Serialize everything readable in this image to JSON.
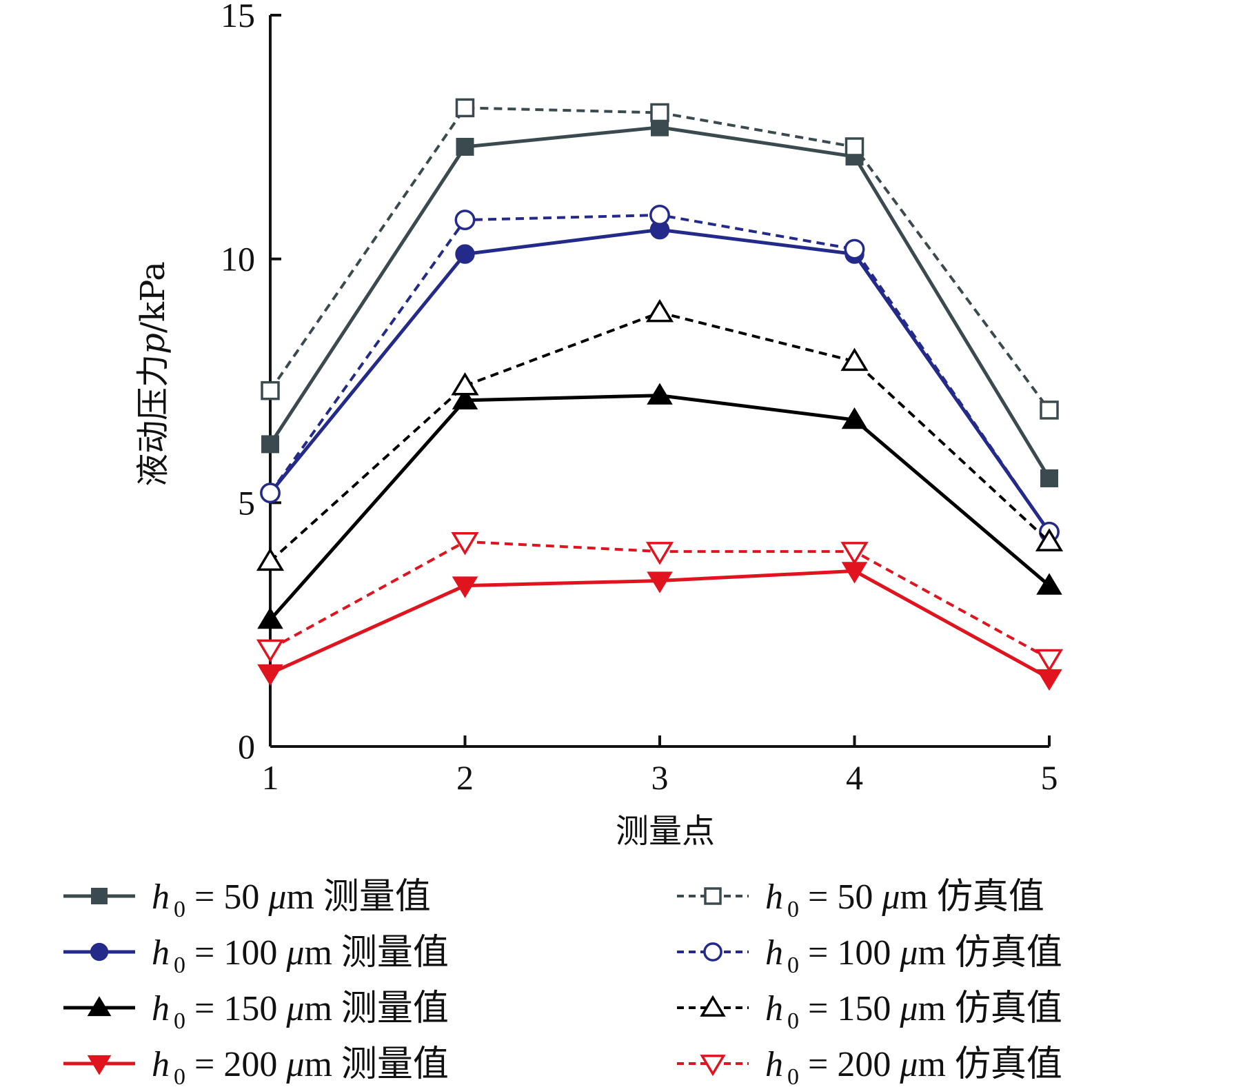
{
  "chart_data": {
    "type": "line",
    "xlabel": "测量点",
    "ylabel_prefix": "液动压力",
    "ylabel_var": "p",
    "ylabel_unit": "/kPa",
    "x": [
      1,
      2,
      3,
      4,
      5
    ],
    "xlim": [
      1,
      5
    ],
    "ylim": [
      0,
      15
    ],
    "xticks": [
      "1",
      "2",
      "3",
      "4",
      "5"
    ],
    "yticks": [
      "0",
      "5",
      "10",
      "15"
    ],
    "grid": false,
    "legend_position": "bottom",
    "series": [
      {
        "name": "h0 = 50 μm 测量值",
        "h": "50",
        "kind": "测量值",
        "color": "#3a4a4e",
        "marker": "square",
        "filled": true,
        "dashed": false,
        "values": [
          6.2,
          12.3,
          12.7,
          12.1,
          5.5
        ]
      },
      {
        "name": "h0 = 100 μm 测量值",
        "h": "100",
        "kind": "测量值",
        "color": "#232a8a",
        "marker": "circle",
        "filled": true,
        "dashed": false,
        "values": [
          5.2,
          10.1,
          10.6,
          10.1,
          4.4
        ]
      },
      {
        "name": "h0 = 150 μm 测量值",
        "h": "150",
        "kind": "测量值",
        "color": "#000000",
        "marker": "triangle-up",
        "filled": true,
        "dashed": false,
        "values": [
          2.6,
          7.1,
          7.2,
          6.7,
          3.3
        ]
      },
      {
        "name": "h0 = 200 μm 测量值",
        "h": "200",
        "kind": "测量值",
        "color": "#e0141e",
        "marker": "triangle-down",
        "filled": true,
        "dashed": false,
        "values": [
          1.5,
          3.3,
          3.4,
          3.6,
          1.4
        ]
      },
      {
        "name": "h0 = 50 μm 仿真值",
        "h": "50",
        "kind": "仿真值",
        "color": "#3a4a4e",
        "marker": "square",
        "filled": false,
        "dashed": true,
        "values": [
          7.3,
          13.1,
          13.0,
          12.3,
          6.9
        ]
      },
      {
        "name": "h0 = 100 μm 仿真值",
        "h": "100",
        "kind": "仿真值",
        "color": "#232a8a",
        "marker": "circle",
        "filled": false,
        "dashed": true,
        "values": [
          5.2,
          10.8,
          10.9,
          10.2,
          4.4
        ]
      },
      {
        "name": "h0 = 150 μm 仿真值",
        "h": "150",
        "kind": "仿真值",
        "color": "#000000",
        "marker": "triangle-up",
        "filled": false,
        "dashed": true,
        "values": [
          3.8,
          7.4,
          8.9,
          7.9,
          4.2
        ]
      },
      {
        "name": "h0 = 200 μm 仿真值",
        "h": "200",
        "kind": "仿真值",
        "color": "#e0141e",
        "marker": "triangle-down",
        "filled": false,
        "dashed": true,
        "values": [
          2.0,
          4.2,
          4.0,
          4.0,
          1.8
        ]
      }
    ]
  }
}
